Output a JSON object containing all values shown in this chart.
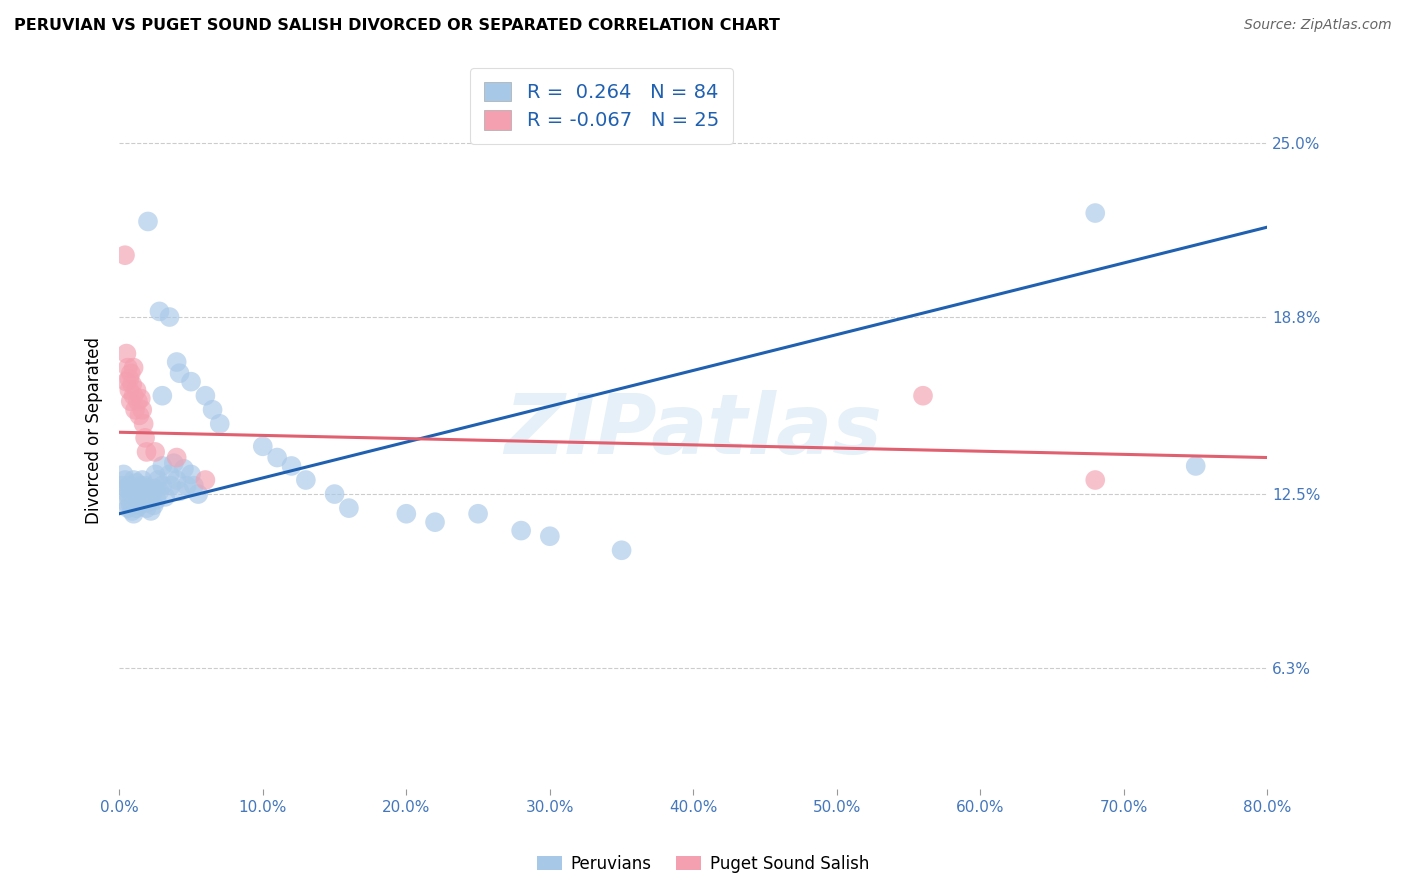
{
  "title": "PERUVIAN VS PUGET SOUND SALISH DIVORCED OR SEPARATED CORRELATION CHART",
  "source": "Source: ZipAtlas.com",
  "xlabel_ticks": [
    "0.0%",
    "10.0%",
    "20.0%",
    "30.0%",
    "40.0%",
    "50.0%",
    "60.0%",
    "70.0%",
    "80.0%"
  ],
  "ylabel_ticks": [
    "6.3%",
    "12.5%",
    "18.8%",
    "25.0%"
  ],
  "xmin": 0.0,
  "xmax": 0.8,
  "ymin": 0.02,
  "ymax": 0.275,
  "blue_color": "#a8c8e8",
  "pink_color": "#f4a0b0",
  "blue_line_color": "#2060b0",
  "pink_line_color": "#e06070",
  "watermark": "ZIPatlas",
  "blue_scatter": [
    [
      0.002,
      0.128
    ],
    [
      0.003,
      0.132
    ],
    [
      0.004,
      0.13
    ],
    [
      0.005,
      0.127
    ],
    [
      0.005,
      0.122
    ],
    [
      0.006,
      0.125
    ],
    [
      0.006,
      0.12
    ],
    [
      0.007,
      0.128
    ],
    [
      0.007,
      0.123
    ],
    [
      0.008,
      0.126
    ],
    [
      0.008,
      0.121
    ],
    [
      0.009,
      0.124
    ],
    [
      0.009,
      0.119
    ],
    [
      0.01,
      0.13
    ],
    [
      0.01,
      0.124
    ],
    [
      0.01,
      0.118
    ],
    [
      0.011,
      0.127
    ],
    [
      0.011,
      0.122
    ],
    [
      0.012,
      0.129
    ],
    [
      0.012,
      0.125
    ],
    [
      0.012,
      0.12
    ],
    [
      0.013,
      0.127
    ],
    [
      0.013,
      0.123
    ],
    [
      0.014,
      0.126
    ],
    [
      0.014,
      0.121
    ],
    [
      0.015,
      0.128
    ],
    [
      0.015,
      0.124
    ],
    [
      0.016,
      0.13
    ],
    [
      0.016,
      0.126
    ],
    [
      0.017,
      0.122
    ],
    [
      0.018,
      0.128
    ],
    [
      0.018,
      0.124
    ],
    [
      0.019,
      0.12
    ],
    [
      0.02,
      0.126
    ],
    [
      0.02,
      0.122
    ],
    [
      0.021,
      0.127
    ],
    [
      0.021,
      0.123
    ],
    [
      0.022,
      0.119
    ],
    [
      0.023,
      0.125
    ],
    [
      0.024,
      0.121
    ],
    [
      0.025,
      0.132
    ],
    [
      0.025,
      0.127
    ],
    [
      0.026,
      0.123
    ],
    [
      0.027,
      0.13
    ],
    [
      0.028,
      0.126
    ],
    [
      0.03,
      0.135
    ],
    [
      0.03,
      0.128
    ],
    [
      0.032,
      0.124
    ],
    [
      0.035,
      0.132
    ],
    [
      0.036,
      0.128
    ],
    [
      0.038,
      0.136
    ],
    [
      0.04,
      0.13
    ],
    [
      0.042,
      0.126
    ],
    [
      0.045,
      0.134
    ],
    [
      0.047,
      0.128
    ],
    [
      0.05,
      0.132
    ],
    [
      0.052,
      0.128
    ],
    [
      0.055,
      0.125
    ],
    [
      0.03,
      0.16
    ],
    [
      0.04,
      0.172
    ],
    [
      0.042,
      0.168
    ],
    [
      0.02,
      0.222
    ],
    [
      0.028,
      0.19
    ],
    [
      0.035,
      0.188
    ],
    [
      0.05,
      0.165
    ],
    [
      0.06,
      0.16
    ],
    [
      0.065,
      0.155
    ],
    [
      0.07,
      0.15
    ],
    [
      0.1,
      0.142
    ],
    [
      0.11,
      0.138
    ],
    [
      0.12,
      0.135
    ],
    [
      0.13,
      0.13
    ],
    [
      0.15,
      0.125
    ],
    [
      0.16,
      0.12
    ],
    [
      0.2,
      0.118
    ],
    [
      0.22,
      0.115
    ],
    [
      0.25,
      0.118
    ],
    [
      0.28,
      0.112
    ],
    [
      0.3,
      0.11
    ],
    [
      0.35,
      0.105
    ],
    [
      0.68,
      0.225
    ],
    [
      0.75,
      0.135
    ]
  ],
  "pink_scatter": [
    [
      0.004,
      0.21
    ],
    [
      0.005,
      0.175
    ],
    [
      0.005,
      0.165
    ],
    [
      0.006,
      0.17
    ],
    [
      0.007,
      0.166
    ],
    [
      0.007,
      0.162
    ],
    [
      0.008,
      0.168
    ],
    [
      0.008,
      0.158
    ],
    [
      0.009,
      0.164
    ],
    [
      0.01,
      0.17
    ],
    [
      0.01,
      0.16
    ],
    [
      0.011,
      0.155
    ],
    [
      0.012,
      0.162
    ],
    [
      0.013,
      0.158
    ],
    [
      0.014,
      0.153
    ],
    [
      0.015,
      0.159
    ],
    [
      0.016,
      0.155
    ],
    [
      0.017,
      0.15
    ],
    [
      0.018,
      0.145
    ],
    [
      0.019,
      0.14
    ],
    [
      0.025,
      0.14
    ],
    [
      0.04,
      0.138
    ],
    [
      0.06,
      0.13
    ],
    [
      0.56,
      0.16
    ],
    [
      0.68,
      0.13
    ]
  ],
  "blue_line_x": [
    0.0,
    0.8
  ],
  "blue_line_y": [
    0.118,
    0.22
  ],
  "pink_line_x": [
    0.0,
    0.8
  ],
  "pink_line_y": [
    0.147,
    0.138
  ]
}
